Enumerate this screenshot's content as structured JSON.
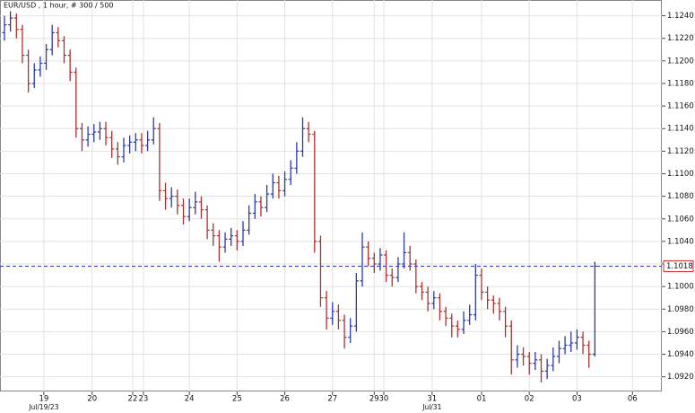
{
  "chart_data": {
    "type": "ohlc",
    "title": "EUR/USD , 1 hour, # 300 / 500",
    "up_color": "#2b3aa8",
    "down_color": "#a83232",
    "grid": true,
    "ylim": [
      1.0907,
      1.1254
    ],
    "yticks": [
      {
        "value": 1.092,
        "label": "1.0920"
      },
      {
        "value": 1.094,
        "label": "1.0940"
      },
      {
        "value": 1.096,
        "label": "1.0960"
      },
      {
        "value": 1.098,
        "label": "1.0980"
      },
      {
        "value": 1.1,
        "label": "1.1000"
      },
      {
        "value": 1.102,
        "label": "1.1020"
      },
      {
        "value": 1.104,
        "label": "1.1040"
      },
      {
        "value": 1.106,
        "label": "1.1060"
      },
      {
        "value": 1.108,
        "label": "1.1080"
      },
      {
        "value": 1.11,
        "label": "1.1100"
      },
      {
        "value": 1.112,
        "label": "1.1120"
      },
      {
        "value": 1.114,
        "label": "1.1140"
      },
      {
        "value": 1.116,
        "label": "1.1160"
      },
      {
        "value": 1.118,
        "label": "1.1180"
      },
      {
        "value": 1.12,
        "label": "1.1200"
      },
      {
        "value": 1.122,
        "label": "1.1220"
      },
      {
        "value": 1.124,
        "label": "1.1240"
      }
    ],
    "last_price": {
      "value": 1.1018,
      "label": "1.1018",
      "color": "#3333cc"
    },
    "xticks": [
      {
        "value": 6.6,
        "label": "19"
      },
      {
        "value": 14.7,
        "label": "20"
      },
      {
        "value": 21.5,
        "label": "22"
      },
      {
        "value": 23.3,
        "label": "23"
      },
      {
        "value": 31,
        "label": "24"
      },
      {
        "value": 39,
        "label": "25"
      },
      {
        "value": 47,
        "label": "26"
      },
      {
        "value": 55,
        "label": "27"
      },
      {
        "value": 62,
        "label": "29"
      },
      {
        "value": 63.6,
        "label": "30"
      },
      {
        "value": 71.7,
        "label": "31"
      },
      {
        "value": 80,
        "label": "01"
      },
      {
        "value": 88,
        "label": "02"
      },
      {
        "value": 96,
        "label": "03"
      },
      {
        "value": 105.3,
        "label": "06"
      }
    ],
    "xticks_month": [
      {
        "value": 6.6,
        "label": "Jul/19/23"
      },
      {
        "value": 71.7,
        "label": "Jul/31"
      }
    ],
    "values": [
      [
        1.1225,
        1.124,
        1.1218,
        1.1232
      ],
      [
        1.1232,
        1.1244,
        1.1226,
        1.1238
      ],
      [
        1.1238,
        1.1242,
        1.122,
        1.1228
      ],
      [
        1.1228,
        1.1232,
        1.1198,
        1.1205
      ],
      [
        1.1205,
        1.121,
        1.1172,
        1.118
      ],
      [
        1.118,
        1.1198,
        1.1176,
        1.1192
      ],
      [
        1.1192,
        1.1204,
        1.1186,
        1.1198
      ],
      [
        1.1198,
        1.1215,
        1.1192,
        1.121
      ],
      [
        1.121,
        1.1232,
        1.1205,
        1.1225
      ],
      [
        1.1225,
        1.123,
        1.1212,
        1.1218
      ],
      [
        1.1218,
        1.1222,
        1.1198,
        1.1205
      ],
      [
        1.1205,
        1.121,
        1.1182,
        1.119
      ],
      [
        1.119,
        1.1194,
        1.1132,
        1.114
      ],
      [
        1.114,
        1.1145,
        1.112,
        1.113
      ],
      [
        1.113,
        1.1142,
        1.1124,
        1.1135
      ],
      [
        1.1135,
        1.1144,
        1.1128,
        1.1137
      ],
      [
        1.1137,
        1.1146,
        1.113,
        1.114
      ],
      [
        1.114,
        1.1146,
        1.1125,
        1.1132
      ],
      [
        1.1132,
        1.1138,
        1.1114,
        1.1122
      ],
      [
        1.1122,
        1.1128,
        1.1108,
        1.1115
      ],
      [
        1.1115,
        1.1132,
        1.111,
        1.1125
      ],
      [
        1.1125,
        1.1134,
        1.1118,
        1.1128
      ],
      [
        1.1128,
        1.1136,
        1.112,
        1.113
      ],
      [
        1.113,
        1.1136,
        1.1118,
        1.1125
      ],
      [
        1.1125,
        1.1138,
        1.112,
        1.113
      ],
      [
        1.113,
        1.115,
        1.1126,
        1.114
      ],
      [
        1.114,
        1.1145,
        1.1076,
        1.1085
      ],
      [
        1.1085,
        1.1092,
        1.1068,
        1.1078
      ],
      [
        1.1078,
        1.1088,
        1.107,
        1.108
      ],
      [
        1.108,
        1.1086,
        1.1064,
        1.1072
      ],
      [
        1.1072,
        1.1078,
        1.1055,
        1.1062
      ],
      [
        1.1062,
        1.1078,
        1.1058,
        1.107
      ],
      [
        1.107,
        1.1084,
        1.1064,
        1.1075
      ],
      [
        1.1075,
        1.108,
        1.106,
        1.1068
      ],
      [
        1.1068,
        1.1072,
        1.1042,
        1.105
      ],
      [
        1.105,
        1.1056,
        1.1036,
        1.1045
      ],
      [
        1.1045,
        1.105,
        1.1022,
        1.1035
      ],
      [
        1.1035,
        1.1048,
        1.103,
        1.1042
      ],
      [
        1.1042,
        1.1052,
        1.1036,
        1.1045
      ],
      [
        1.1045,
        1.105,
        1.1032,
        1.104
      ],
      [
        1.104,
        1.1058,
        1.1036,
        1.105
      ],
      [
        1.105,
        1.1072,
        1.1046,
        1.1065
      ],
      [
        1.1065,
        1.1082,
        1.106,
        1.1075
      ],
      [
        1.1075,
        1.108,
        1.1062,
        1.107
      ],
      [
        1.107,
        1.109,
        1.1066,
        1.1082
      ],
      [
        1.1082,
        1.11,
        1.1078,
        1.1092
      ],
      [
        1.1092,
        1.1098,
        1.1078,
        1.1085
      ],
      [
        1.1085,
        1.1102,
        1.108,
        1.1095
      ],
      [
        1.1095,
        1.1112,
        1.109,
        1.1105
      ],
      [
        1.1105,
        1.1128,
        1.11,
        1.112
      ],
      [
        1.112,
        1.115,
        1.1115,
        1.114
      ],
      [
        1.114,
        1.1146,
        1.1128,
        1.1135
      ],
      [
        1.1135,
        1.1138,
        1.103,
        1.104
      ],
      [
        1.104,
        1.1045,
        1.0982,
        1.099
      ],
      [
        1.099,
        1.0996,
        1.0962,
        1.0972
      ],
      [
        1.0972,
        1.0986,
        1.0966,
        1.0978
      ],
      [
        1.0978,
        1.0984,
        1.0962,
        1.097
      ],
      [
        1.097,
        1.0975,
        1.0945,
        1.0955
      ],
      [
        1.0955,
        1.0972,
        1.095,
        1.0965
      ],
      [
        1.0965,
        1.1012,
        1.096,
        1.1005
      ],
      [
        1.1005,
        1.1048,
        1.1,
        1.1035
      ],
      [
        1.1035,
        1.104,
        1.1018,
        1.1025
      ],
      [
        1.1025,
        1.103,
        1.1012,
        1.102
      ],
      [
        1.102,
        1.1034,
        1.1014,
        1.1028
      ],
      [
        1.1028,
        1.1032,
        1.1004,
        1.101
      ],
      [
        1.101,
        1.1016,
        1.1,
        1.1008
      ],
      [
        1.1008,
        1.1026,
        1.1004,
        1.102
      ],
      [
        1.102,
        1.1048,
        1.1016,
        1.103
      ],
      [
        1.103,
        1.1036,
        1.1014,
        1.102
      ],
      [
        1.102,
        1.1024,
        1.0994,
        1.1
      ],
      [
        1.1,
        1.1004,
        1.0988,
        1.0995
      ],
      [
        1.0995,
        1.1,
        1.0978,
        1.0985
      ],
      [
        1.0985,
        1.0996,
        1.098,
        1.099
      ],
      [
        1.099,
        1.0994,
        1.097,
        1.0978
      ],
      [
        1.0978,
        1.0982,
        1.0965,
        1.0972
      ],
      [
        1.0972,
        1.0976,
        1.0955,
        1.0965
      ],
      [
        1.0965,
        1.097,
        1.0955,
        1.0962
      ],
      [
        1.0962,
        1.0978,
        1.0958,
        1.097
      ],
      [
        1.097,
        1.0984,
        1.0966,
        1.0975
      ],
      [
        1.0975,
        1.102,
        1.097,
        1.101
      ],
      [
        1.101,
        1.1016,
        1.0988,
        1.0995
      ],
      [
        1.0995,
        1.1,
        1.098,
        1.0988
      ],
      [
        1.0988,
        1.0992,
        1.0976,
        1.0985
      ],
      [
        1.0985,
        1.099,
        1.097,
        1.0978
      ],
      [
        1.0978,
        1.0982,
        1.0955,
        1.0965
      ],
      [
        1.0965,
        1.097,
        1.0922,
        1.0935
      ],
      [
        1.0935,
        1.0948,
        1.0928,
        1.094
      ],
      [
        1.094,
        1.0946,
        1.093,
        1.0938
      ],
      [
        1.0938,
        1.0942,
        1.0922,
        1.0932
      ],
      [
        1.0932,
        1.0942,
        1.0926,
        1.0935
      ],
      [
        1.0935,
        1.094,
        1.0915,
        1.0925
      ],
      [
        1.0925,
        1.0936,
        1.0918,
        1.093
      ],
      [
        1.093,
        1.0946,
        1.0925,
        1.0938
      ],
      [
        1.0938,
        1.0952,
        1.0932,
        1.0945
      ],
      [
        1.0945,
        1.0956,
        1.094,
        1.0948
      ],
      [
        1.0948,
        1.096,
        1.0942,
        1.095
      ],
      [
        1.095,
        1.0962,
        1.0944,
        1.0955
      ],
      [
        1.0955,
        1.096,
        1.094,
        1.0948
      ],
      [
        1.0948,
        1.0952,
        1.0928,
        1.094
      ],
      [
        1.094,
        1.1022,
        1.0938,
        1.1018
      ]
    ]
  }
}
